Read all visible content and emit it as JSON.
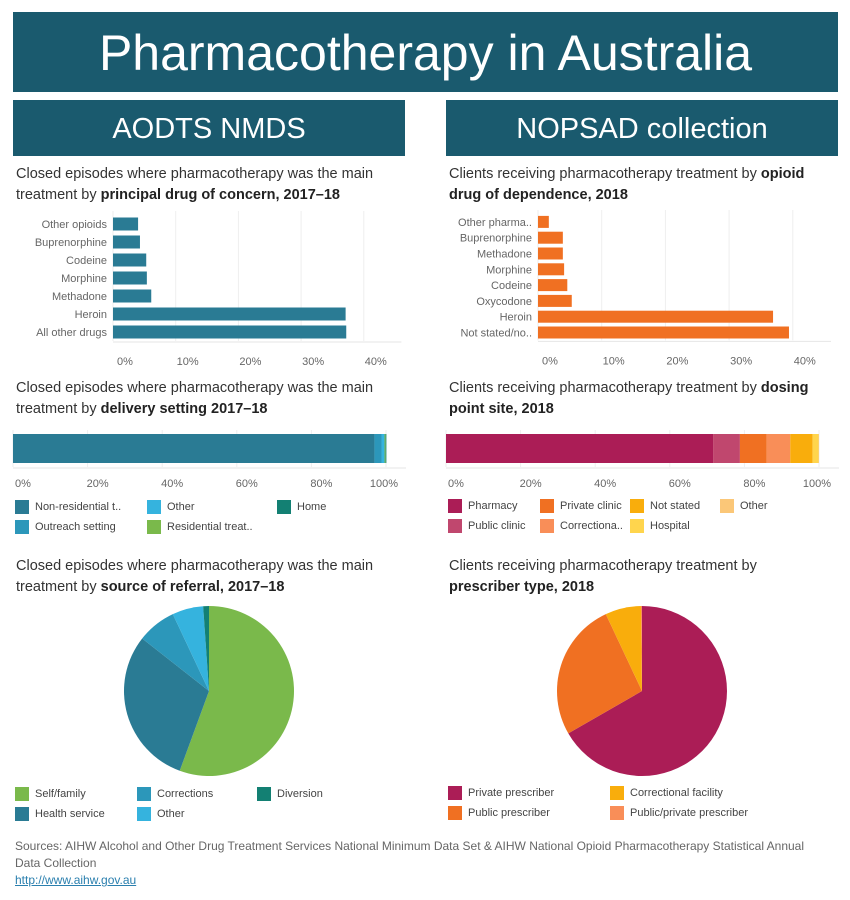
{
  "title": "Pharmacotherapy in Australia",
  "sections": {
    "left": "AODTS NMDS",
    "right": "NOPSAD collection"
  },
  "colors": {
    "banner": "#1a5a6e",
    "teal": "#2a7b94",
    "orange": "#f07022"
  },
  "chart_titles": {
    "c1": {
      "pre": "Closed episodes where pharmacotherapy was the main treatment by ",
      "bold": "principal drug of concern, 2017–18"
    },
    "c2": {
      "pre": "Clients receiving pharmacotherapy treatment by ",
      "bold": "opioid drug of dependence, 2018"
    },
    "c3": {
      "pre": "Closed episodes where pharmacotherapy was the main treatment by ",
      "bold": "delivery setting 2017–18"
    },
    "c4": {
      "pre": "Clients receiving pharmacotherapy treatment by ",
      "bold": "dosing point site, 2018"
    },
    "c5": {
      "pre": "Closed episodes where pharmacotherapy was the main treatment by ",
      "bold": "source of referral, 2017–18"
    },
    "c6": {
      "pre": "Clients receiving pharmacotherapy treatment by ",
      "bold": "prescriber type, 2018"
    }
  },
  "chart_data": [
    {
      "type": "bar",
      "orientation": "horizontal",
      "color": "#2a7b94",
      "categories": [
        "Other opioids",
        "Buprenorphine",
        "Codeine",
        "Morphine",
        "Methadone",
        "Heroin",
        "All other drugs"
      ],
      "values": [
        4.0,
        4.3,
        5.3,
        5.4,
        6.1,
        37.1,
        37.2
      ],
      "xticks": [
        "0%",
        "10%",
        "20%",
        "30%",
        "40%"
      ],
      "xlim": [
        0,
        46
      ],
      "grid": true
    },
    {
      "type": "bar",
      "orientation": "horizontal",
      "color": "#f07022",
      "categories": [
        "Other pharma..",
        "Buprenorphine",
        "Methadone",
        "Morphine",
        "Codeine",
        "Oxycodone",
        "Heroin",
        "Not stated/no.."
      ],
      "values": [
        1.7,
        3.9,
        3.9,
        4.1,
        4.6,
        5.3,
        36.9,
        39.4
      ],
      "xticks": [
        "0%",
        "10%",
        "20%",
        "30%",
        "40%"
      ],
      "xlim": [
        0,
        46
      ],
      "grid": true
    },
    {
      "type": "bar",
      "stacked": true,
      "orientation": "horizontal",
      "series": [
        {
          "name": "Non-residential t..",
          "value": 96.9,
          "color": "#2a7b94"
        },
        {
          "name": "Outreach setting",
          "value": 1.9,
          "color": "#2c97ba"
        },
        {
          "name": "Other",
          "value": 0.8,
          "color": "#35b3de"
        },
        {
          "name": "Residential treat..",
          "value": 0.3,
          "color": "#7ab94b"
        },
        {
          "name": "Home",
          "value": 0.2,
          "color": "#138073"
        }
      ],
      "legend_order": [
        0,
        2,
        4,
        1,
        3
      ],
      "xticks": [
        "0%",
        "20%",
        "40%",
        "60%",
        "80%",
        "100%"
      ],
      "xlim": [
        0,
        100
      ]
    },
    {
      "type": "bar",
      "stacked": true,
      "orientation": "horizontal",
      "series": [
        {
          "name": "Pharmacy",
          "value": 71.6,
          "color": "#ab1d56"
        },
        {
          "name": "Public clinic",
          "value": 7.2,
          "color": "#c0476e"
        },
        {
          "name": "Private clinic",
          "value": 7.2,
          "color": "#f07022"
        },
        {
          "name": "Correctiona..",
          "value": 6.3,
          "color": "#f98e58"
        },
        {
          "name": "Not stated",
          "value": 6.0,
          "color": "#f9ad0c"
        },
        {
          "name": "Hospital",
          "value": 1.6,
          "color": "#ffd54d"
        },
        {
          "name": "Other",
          "value": 0.1,
          "color": "#fbc778"
        }
      ],
      "legend_order": [
        0,
        2,
        4,
        6,
        1,
        3,
        5
      ],
      "xticks": [
        "0%",
        "20%",
        "40%",
        "60%",
        "80%",
        "100%"
      ],
      "xlim": [
        0,
        100
      ]
    },
    {
      "type": "pie",
      "series": [
        {
          "name": "Self/family",
          "value": 55.6,
          "color": "#7ab94b"
        },
        {
          "name": "Health service",
          "value": 30.0,
          "color": "#2a7b94"
        },
        {
          "name": "Corrections",
          "value": 7.4,
          "color": "#2c97ba"
        },
        {
          "name": "Other",
          "value": 5.9,
          "color": "#35b3de"
        },
        {
          "name": "Diversion",
          "value": 1.1,
          "color": "#138073"
        }
      ],
      "legend_order": [
        0,
        2,
        4,
        1,
        3
      ]
    },
    {
      "type": "pie",
      "series": [
        {
          "name": "Private prescriber",
          "value": 66.7,
          "color": "#ab1d56"
        },
        {
          "name": "Public prescriber",
          "value": 26.3,
          "color": "#f07022"
        },
        {
          "name": "Correctional facility",
          "value": 6.8,
          "color": "#f9ad0c"
        },
        {
          "name": "Public/private prescriber",
          "value": 0.2,
          "color": "#f98e58"
        }
      ],
      "legend_order": [
        0,
        2,
        1,
        3
      ]
    }
  ],
  "sources": {
    "text": "Sources: AIHW Alcohol and Other Drug Treatment Services National Minimum Data Set & AIHW National Opioid Pharmacotherapy Statistical Annual Data Collection",
    "link": "http://www.aihw.gov.au"
  }
}
